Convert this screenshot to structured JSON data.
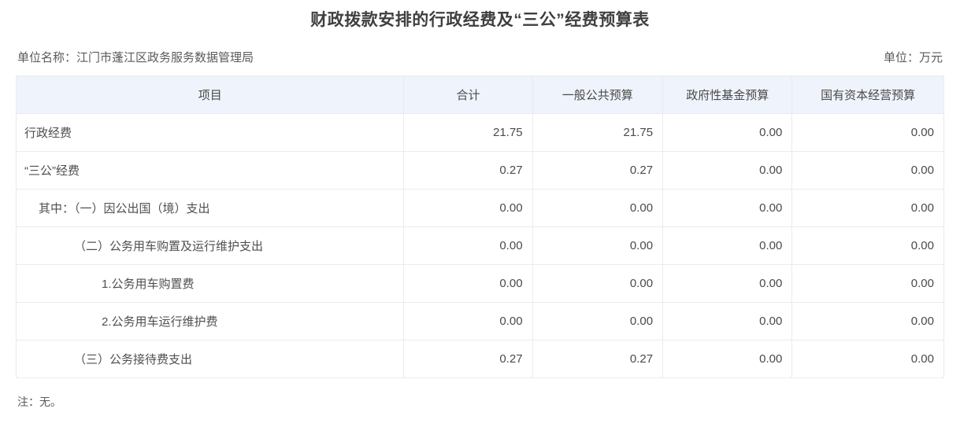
{
  "page": {
    "title": "财政拨款安排的行政经费及“三公”经费预算表",
    "unit_name": "单位名称：江门市蓬江区政务服务数据管理局",
    "unit_measure": "单位：万元",
    "note": "注：无。"
  },
  "colors": {
    "header_bg": "#eff3fb",
    "border": "#e9ebee",
    "title_text": "#3f3f3f",
    "body_text": "#555555"
  },
  "table": {
    "columns": [
      "项目",
      "合计",
      "一般公共预算",
      "政府性基金预算",
      "国有资本经营预算"
    ],
    "rows": [
      {
        "item": "行政经费",
        "indent": 0,
        "values": [
          "21.75",
          "21.75",
          "0.00",
          "0.00"
        ]
      },
      {
        "item": "“三公”经费",
        "indent": 0,
        "values": [
          "0.27",
          "0.27",
          "0.00",
          "0.00"
        ]
      },
      {
        "item": "其中：（一）因公出国（境）支出",
        "indent": 1,
        "values": [
          "0.00",
          "0.00",
          "0.00",
          "0.00"
        ]
      },
      {
        "item": "（二）公务用车购置及运行维护支出",
        "indent": 2,
        "values": [
          "0.00",
          "0.00",
          "0.00",
          "0.00"
        ]
      },
      {
        "item": "1.公务用车购置费",
        "indent": 3,
        "values": [
          "0.00",
          "0.00",
          "0.00",
          "0.00"
        ]
      },
      {
        "item": "2.公务用车运行维护费",
        "indent": 3,
        "values": [
          "0.00",
          "0.00",
          "0.00",
          "0.00"
        ]
      },
      {
        "item": "（三）公务接待费支出",
        "indent": 2,
        "values": [
          "0.27",
          "0.27",
          "0.00",
          "0.00"
        ]
      }
    ]
  }
}
